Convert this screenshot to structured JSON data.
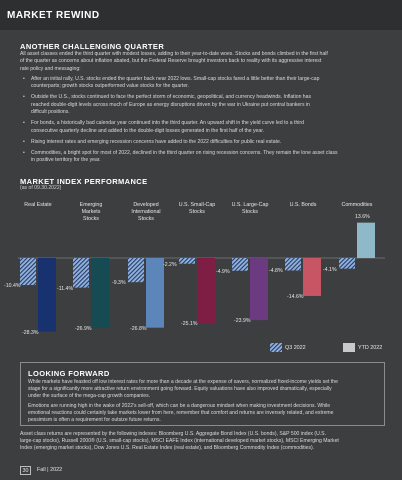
{
  "header": {
    "title": "MARKET REWIND"
  },
  "section1": {
    "title": "ANOTHER CHALLENGING QUARTER",
    "intro": [
      "All asset classes ended the third quarter with modest losses, adding to their year-to-date woes. Stocks and bonds climbed in the first half",
      "of the quarter as concerns about inflation abated, but the Federal Reserve brought investors back to reality with its aggressive interest",
      "rate policy and messaging:"
    ],
    "bullets": [
      [
        "After an initial rally, U.S. stocks ended the quarter back near 2022 lows. Small-cap stocks fared a little better than their large-cap",
        "counterparts; growth stocks outperformed value stocks for the quarter."
      ],
      [
        "Outside the U.S., stocks continued to face the perfect storm of economic, geopolitical, and currency headwinds. Inflation has",
        "reached double-digit levels across much of Europe as energy disruptions driven by the war in Ukraine put central bankers in",
        "difficult positions."
      ],
      [
        "For bonds, a historically bad calendar year continued into the third quarter. An upward shift in the yield curve led to a third",
        "consecutive quarterly decline and added to the double-digit losses generated in the first half of the year."
      ],
      [
        "Rising interest rates and emerging recession concerns have added to the 2022 difficulties for public real estate."
      ],
      [
        "Commodities, a bright spot for most of 2022, declined in the third quarter on rising recession concerns. They remain the lone asset class",
        "in positive territory for the year."
      ]
    ]
  },
  "section2": {
    "title": "MARKET INDEX PERFORMANCE",
    "subtitle": "(as of 09.30.2022)"
  },
  "chart_data": {
    "type": "bar",
    "categories": [
      [
        "Real Estate"
      ],
      [
        "Emerging",
        "Markets",
        "Stocks"
      ],
      [
        "Developed",
        "International",
        "Stocks"
      ],
      [
        "U.S. Small-Cap",
        "Stocks"
      ],
      [
        "U.S. Large-Cap",
        "Stocks"
      ],
      [
        "U.S. Bonds"
      ],
      [
        "Commodities"
      ]
    ],
    "series": [
      {
        "name": "Q3 2022",
        "values": [
          -10.4,
          -11.4,
          -9.3,
          -2.2,
          -4.9,
          -4.8,
          -4.1
        ]
      },
      {
        "name": "YTD 2022",
        "values": [
          -28.3,
          -26.9,
          -26.8,
          -25.1,
          -23.9,
          -14.6,
          13.6
        ]
      }
    ],
    "value_labels": {
      "q3": [
        "-10.4%",
        "-11.4%",
        "-9.3%",
        "-2.2%",
        "-4.9%",
        "-4.8%",
        "-4.1%"
      ],
      "ytd": [
        "-28.3%",
        "-26.9%",
        "-26.8%",
        "-25.1%",
        "-23.9%",
        "-14.6%",
        "13.6%"
      ]
    },
    "colors": {
      "q3_fill": "#8fb3dd",
      "q3_hatch": "#2b3a67",
      "ytd": [
        "#17326e",
        "#174b53",
        "#5c85b9",
        "#7e1e44",
        "#6b3a80",
        "#c85563",
        "#8fb9c8"
      ]
    },
    "legend_placement": "bottom-right"
  },
  "legend": {
    "q3": "Q3 2022",
    "ytd": "YTD 2022"
  },
  "looking_forward": {
    "title": "LOOKING FORWARD",
    "p1": [
      "While markets have feasted off low interest rates for more than a decade at the expense of savers, normalized fixed-income yields set the",
      "stage for a significantly more attractive return environment going forward. Equity valuations have also improved dramatically, especially",
      "under the surface of the mega-cap growth companies."
    ],
    "p2": [
      "Emotions are running high in the wake of 2022's sell-off, which can be a dangerous mindset when making investment decisions. While",
      "emotional reactions could certainly take markets lower from here, remember that comfort and returns are inversely related, and extreme",
      "pessimism is often a requirement for outsize future returns."
    ]
  },
  "footnote": [
    "Asset class returns are represented by the following indexes: Bloomberg U.S. Aggregate Bond Index (U.S. bonds), S&P 500 index (U.S.",
    "large-cap stocks), Russell 2000® (U.S. small-cap stocks), MSCI EAFE Index (international developed market stocks), MSCI Emerging Market",
    "Index (emerging market stocks), Dow Jones U.S. Real Estate Index (real estate), and Bloomberg Commodity Index (commodities)."
  ],
  "page": {
    "number": "30",
    "label": "Fall | 2022"
  }
}
